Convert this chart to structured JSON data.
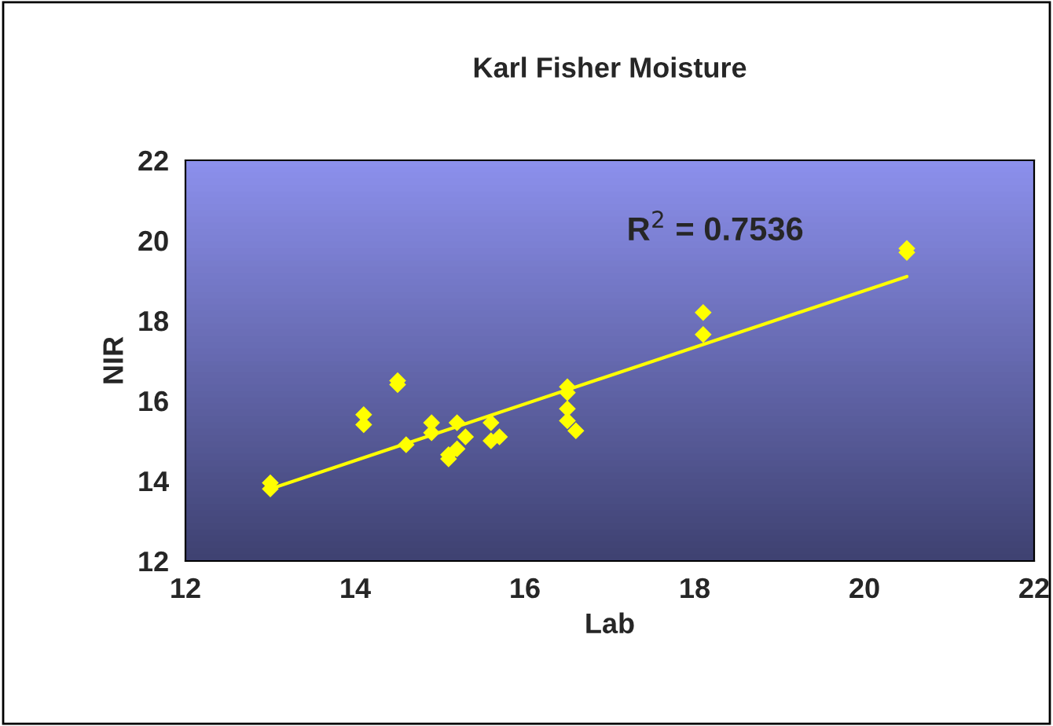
{
  "chart_data": {
    "type": "scatter",
    "title": "Karl Fisher Moisture",
    "xlabel": "Lab",
    "ylabel": "NIR",
    "series": [
      {
        "color": "#ffff00",
        "marker": "diamond",
        "x": [
          13.0,
          13.0,
          14.1,
          14.1,
          14.5,
          14.5,
          14.6,
          14.9,
          14.9,
          15.1,
          15.1,
          15.2,
          15.2,
          15.3,
          15.6,
          15.6,
          15.7,
          16.5,
          16.5,
          16.5,
          16.5,
          16.6,
          18.1,
          18.1,
          20.5,
          20.5
        ],
        "values": [
          13.95,
          13.8,
          15.65,
          15.4,
          16.5,
          16.4,
          14.9,
          15.45,
          15.2,
          14.55,
          14.65,
          14.8,
          15.45,
          15.1,
          15.45,
          15.0,
          15.1,
          16.35,
          16.2,
          15.8,
          15.5,
          15.25,
          18.2,
          17.65,
          19.8,
          19.7
        ]
      },
      {
        "type": "line",
        "color": "#ffff00",
        "marker": "none",
        "x": [
          13.0,
          20.5
        ],
        "values": [
          13.8,
          19.1
        ]
      }
    ],
    "annotations": [
      "R$^{2}$ = 0.7536"
    ],
    "xlim": [
      12,
      22
    ],
    "xticks": [
      12,
      14,
      16,
      18,
      20,
      22
    ],
    "ylim": [
      12,
      22
    ],
    "yticks": [
      12,
      14,
      16,
      18,
      20,
      22
    ],
    "grid": false,
    "legend": false
  }
}
